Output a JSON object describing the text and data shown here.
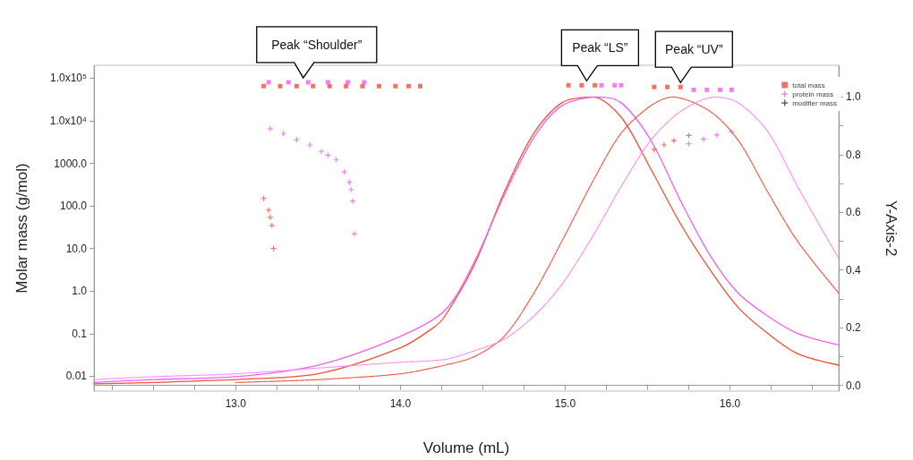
{
  "chart_data": {
    "type": "scatter",
    "xlabel": "Volume (mL)",
    "ylabel": "Molar mass (g/mol)",
    "y2label": "Y-Axis-2",
    "log": "y",
    "legend": "top right",
    "xlim": [
      12.14,
      16.66
    ],
    "xticks": [
      {
        "value": 12.25,
        "label": null
      },
      {
        "value": 12.5,
        "label": null
      },
      {
        "value": 12.75,
        "label": null
      },
      {
        "value": 13,
        "label": "13.0"
      },
      {
        "value": 13.25,
        "label": null
      },
      {
        "value": 13.5,
        "label": null
      },
      {
        "value": 13.75,
        "label": null
      },
      {
        "value": 14,
        "label": "14.0"
      },
      {
        "value": 14.25,
        "label": null
      },
      {
        "value": 14.5,
        "label": null
      },
      {
        "value": 14.75,
        "label": null
      },
      {
        "value": 15,
        "label": "15.0"
      },
      {
        "value": 15.25,
        "label": null
      },
      {
        "value": 15.5,
        "label": null
      },
      {
        "value": 15.75,
        "label": null
      },
      {
        "value": 16,
        "label": "16.0"
      },
      {
        "value": 16.25,
        "label": null
      },
      {
        "value": 16.5,
        "label": null
      }
    ],
    "ylim": [
      0.0045,
      200000
    ],
    "yticks": [
      {
        "value": 0.01,
        "label": "0.01"
      },
      {
        "value": 0.1,
        "label": "0.1"
      },
      {
        "value": 1,
        "label": "1.0"
      },
      {
        "value": 10,
        "label": "10.0"
      },
      {
        "value": 100,
        "label": "100.0"
      },
      {
        "value": 1000,
        "label": "1000.0"
      },
      {
        "value": 10000,
        "label": "1.0x10⁴"
      },
      {
        "value": 100000,
        "label": "1.0x10⁵"
      }
    ],
    "y2lim": [
      -0.02,
      1.11
    ],
    "y2ticks": [
      {
        "value": 0,
        "label": "0.0"
      },
      {
        "value": 0.1,
        "label": null
      },
      {
        "value": 0.2,
        "label": "0.2"
      },
      {
        "value": 0.3,
        "label": null
      },
      {
        "value": 0.4,
        "label": "0.4"
      },
      {
        "value": 0.5,
        "label": null
      },
      {
        "value": 0.6,
        "label": "0.6"
      },
      {
        "value": 0.7,
        "label": null
      },
      {
        "value": 0.8,
        "label": "0.8"
      },
      {
        "value": 0.9,
        "label": null
      },
      {
        "value": 1,
        "label": "1.0"
      }
    ],
    "annotations": [
      {
        "text": "Peak “Shoulder”",
        "x": 13.41,
        "y": 80000
      },
      {
        "text": "Peak “LS”",
        "x": 15.13,
        "y": 68000
      },
      {
        "text": "Peak “UV”",
        "x": 15.7,
        "y": 62000
      }
    ],
    "series": [
      {
        "type": "line",
        "axis": "y2",
        "color": "#f0503c",
        "line_style": "solid",
        "x": [
          12.14,
          12.5,
          13.0,
          13.5,
          14.0,
          14.2,
          14.27,
          14.45,
          14.63,
          14.81,
          14.98,
          15.17,
          15.34,
          15.52,
          15.7,
          15.88,
          16.05,
          16.23,
          16.41,
          16.66
        ],
        "values": [
          0.005,
          0.01,
          0.02,
          0.04,
          0.13,
          0.2,
          0.24,
          0.42,
          0.67,
          0.875,
          0.98,
          1.0,
          0.93,
          0.75,
          0.56,
          0.4,
          0.27,
          0.18,
          0.11,
          0.07
        ]
      },
      {
        "type": "line",
        "axis": "y2",
        "color": "#f060f0",
        "line_style": "solid",
        "x": [
          12.14,
          12.5,
          13.0,
          13.5,
          14.0,
          14.27,
          14.45,
          14.63,
          14.81,
          14.98,
          15.2,
          15.34,
          15.52,
          15.7,
          15.88,
          16.05,
          16.23,
          16.41,
          16.66
        ],
        "values": [
          0.01,
          0.02,
          0.03,
          0.07,
          0.17,
          0.26,
          0.43,
          0.66,
          0.86,
          0.97,
          1.0,
          0.98,
          0.85,
          0.64,
          0.45,
          0.32,
          0.24,
          0.18,
          0.14
        ]
      },
      {
        "type": "line",
        "axis": "y2",
        "color": "#f0503c",
        "line_style": "dotted",
        "x": [
          13.0,
          13.5,
          14.0,
          14.27,
          14.45,
          14.63,
          14.81,
          14.98,
          15.17,
          15.34,
          15.52,
          15.65,
          15.88,
          16.05,
          16.23,
          16.41,
          16.66
        ],
        "values": [
          0.01,
          0.02,
          0.04,
          0.07,
          0.1,
          0.17,
          0.32,
          0.5,
          0.71,
          0.875,
          0.97,
          1.0,
          0.95,
          0.85,
          0.67,
          0.5,
          0.32
        ]
      },
      {
        "type": "line",
        "axis": "y2",
        "color": "#f78cf7",
        "line_style": "dotted",
        "x": [
          12.14,
          12.5,
          13.0,
          13.5,
          14.0,
          14.27,
          14.45,
          14.63,
          14.81,
          14.98,
          15.17,
          15.34,
          15.52,
          15.7,
          15.91,
          16.05,
          16.23,
          16.41,
          16.66
        ],
        "values": [
          0.02,
          0.03,
          0.04,
          0.06,
          0.08,
          0.09,
          0.12,
          0.16,
          0.24,
          0.35,
          0.52,
          0.69,
          0.85,
          0.95,
          1.0,
          0.98,
          0.88,
          0.69,
          0.44
        ]
      },
      {
        "name": "total mass",
        "marker": "square",
        "x": [
          13.17,
          13.27,
          13.37,
          13.47,
          13.57,
          13.67,
          13.77,
          13.87,
          13.97,
          14.05,
          14.12,
          13.2,
          13.32,
          13.44,
          13.56,
          13.68,
          13.78,
          15.02,
          15.1,
          15.18,
          15.22,
          15.3,
          15.34,
          15.54,
          15.62,
          15.7,
          15.78,
          15.86,
          15.94,
          16.01
        ],
        "values": [
          65000,
          65000,
          65000,
          65000,
          65000,
          65000,
          65000,
          65000,
          65000,
          65000,
          65000,
          80000,
          80000,
          80000,
          80000,
          80000,
          80000,
          68000,
          68000,
          68000,
          68000,
          68000,
          68000,
          62000,
          62000,
          62000,
          53000,
          53000,
          53000,
          53000
        ],
        "colors": [
          "#f0503c",
          "#f0503c",
          "#f0503c",
          "#f0503c",
          "#f0503c",
          "#f0503c",
          "#f0503c",
          "#f0503c",
          "#f0503c",
          "#f0503c",
          "#f0503c",
          "#f060f0",
          "#f060f0",
          "#f060f0",
          "#f060f0",
          "#f060f0",
          "#f060f0",
          "#f0503c",
          "#f0503c",
          "#f0503c",
          "#f060f0",
          "#f060f0",
          "#f060f0",
          "#f0503c",
          "#f0503c",
          "#f0503c",
          "#f060f0",
          "#f060f0",
          "#f060f0",
          "#f060f0"
        ]
      },
      {
        "name": "protein mass",
        "marker": "cross",
        "x": [
          13.21,
          13.29,
          13.37,
          13.45,
          13.52,
          13.56,
          13.61,
          13.66,
          13.69,
          13.7,
          13.71,
          13.72,
          13.17,
          13.2,
          13.21,
          13.22,
          13.23,
          15.54,
          15.6,
          15.66,
          15.75,
          15.75,
          15.84,
          15.92,
          16.01
        ],
        "values": [
          6500,
          5000,
          3600,
          2700,
          1900,
          1550,
          1230,
          630,
          360,
          240,
          130,
          22,
          150,
          80,
          54,
          35,
          10,
          2100,
          2700,
          3400,
          4500,
          2900,
          3700,
          4600,
          5500
        ],
        "colors": [
          "#f060f0",
          "#f060f0",
          "#f060f0",
          "#f060f0",
          "#f060f0",
          "#f060f0",
          "#f060f0",
          "#f060f0",
          "#f060f0",
          "#f060f0",
          "#f060f0",
          "#f060f0",
          "#f0503c",
          "#f0503c",
          "#f0503c",
          "#f0503c",
          "#f0503c",
          "#f0503c",
          "#f0503c",
          "#f0503c",
          "#f0503c",
          "#f060f0",
          "#f060f0",
          "#f060f0",
          "#f060f0"
        ]
      },
      {
        "name": "modifier mass",
        "marker": "cross",
        "color": "#333333"
      }
    ]
  }
}
